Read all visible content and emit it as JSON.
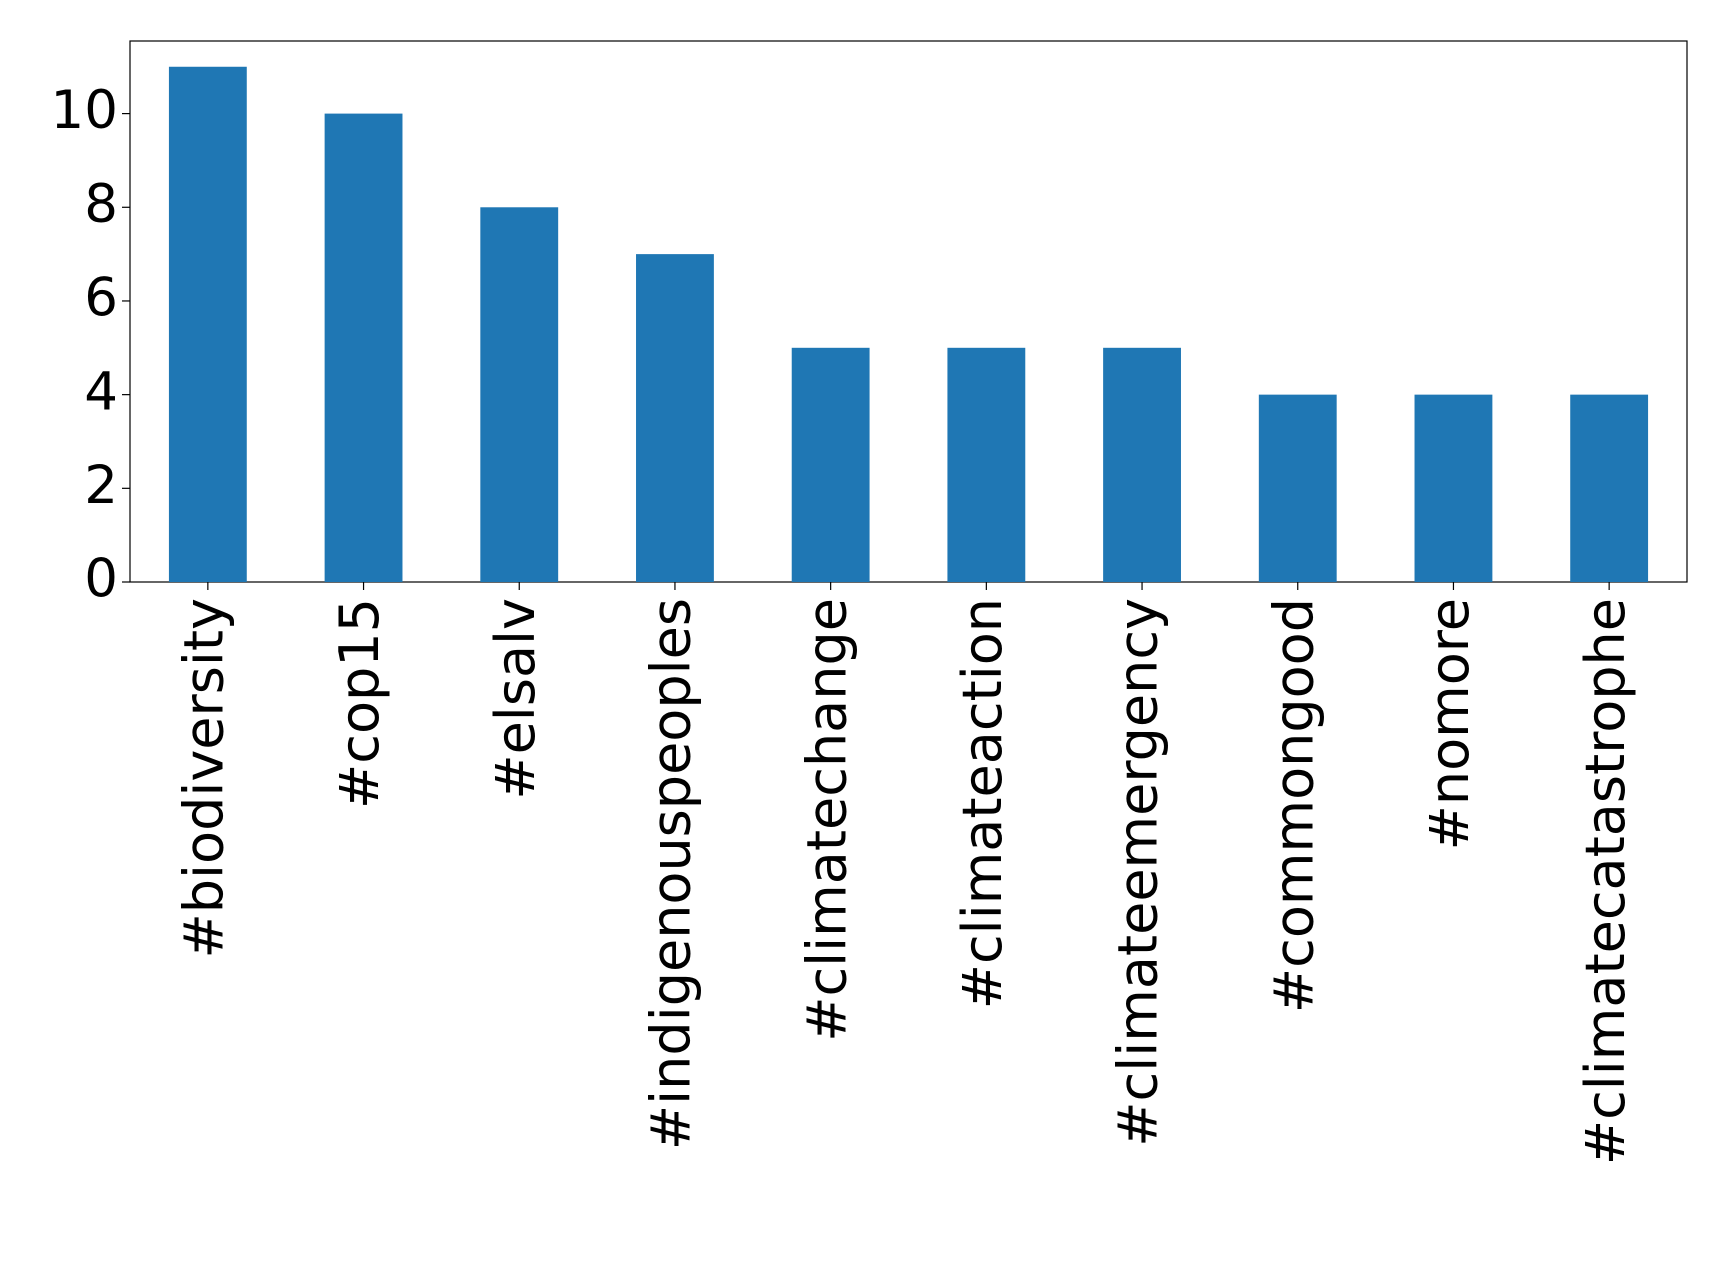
{
  "chart_data": {
    "type": "bar",
    "categories": [
      "#biodiversity",
      "#cop15",
      "#elsalv",
      "#indigenouspeoples",
      "#climatechange",
      "#climateaction",
      "#climateemergency",
      "#commongood",
      "#nomore",
      "#climatecatastrophe"
    ],
    "values": [
      11,
      10,
      8,
      7,
      5,
      5,
      5,
      4,
      4,
      4
    ],
    "color": "#1f77b4",
    "ylim": [
      0,
      11.55
    ],
    "yticks": [
      0,
      2,
      4,
      6,
      8,
      10
    ],
    "grid": false
  }
}
